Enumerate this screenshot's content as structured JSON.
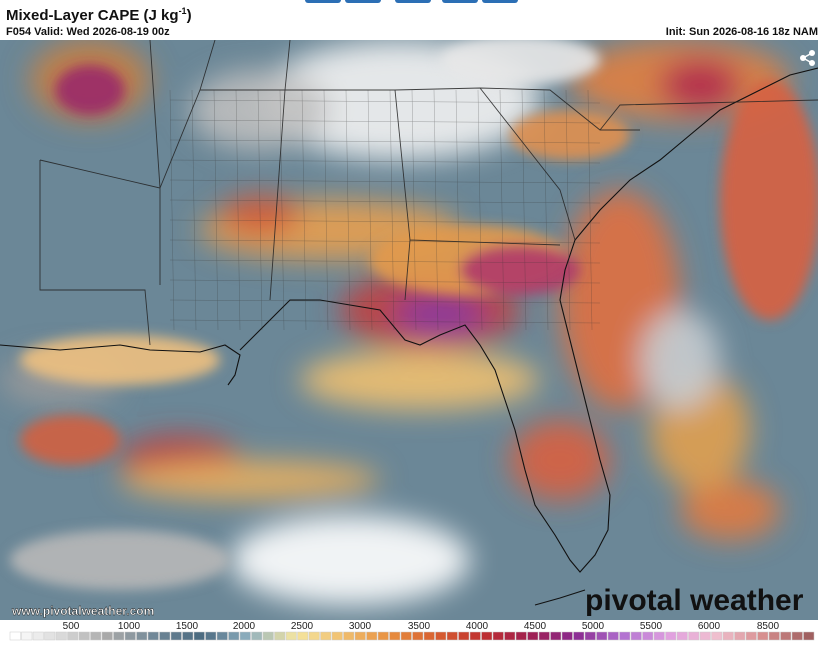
{
  "header": {
    "title": {
      "text": "Mixed-Layer CAPE (J kg",
      "superscript": "-1",
      "close": ")"
    },
    "valid": "F054 Valid: Wed 2026-08-19 00z",
    "init": "Sun 2026-08-16 18z NAM",
    "init_prefix": "Init:"
  },
  "map": {
    "website": "www.pivotalweather.com",
    "brand": "pivotal weather"
  },
  "colorbar": {
    "labels": [
      500,
      1000,
      1500,
      2000,
      2500,
      3000,
      3500,
      4000,
      4500,
      5000,
      5500,
      6000,
      8500
    ]
  }
}
